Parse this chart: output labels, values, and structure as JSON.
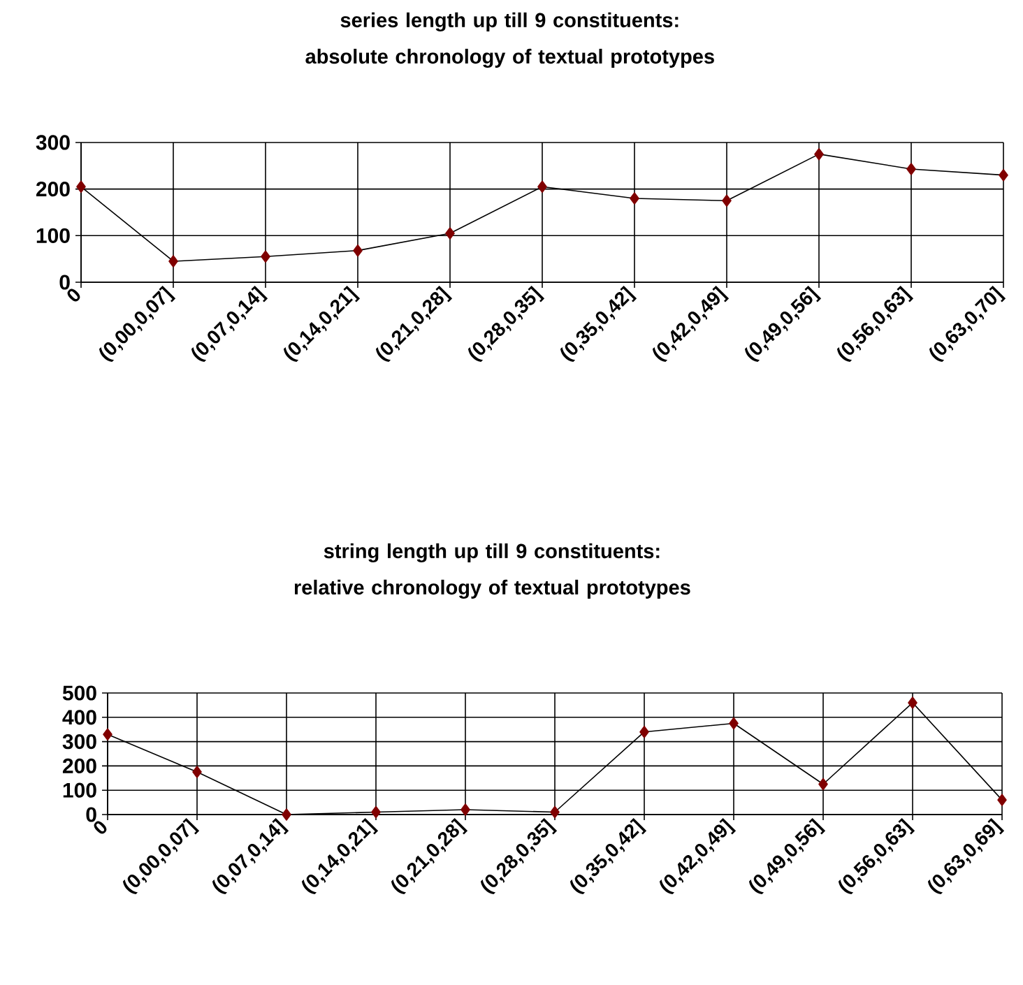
{
  "chart_data": [
    {
      "type": "line",
      "title": "series length up till 9 constituents: absolute chronology of textual prototypes",
      "categories": [
        "0",
        "(0,00,0,07]",
        "(0,07,0,14]",
        "(0,14,0,21]",
        "(0,21,0,28]",
        "(0,28,0,35]",
        "(0,35,0,42]",
        "(0,42,0,49]",
        "(0,49,0,56]",
        "(0,56,0,63]",
        "(0,63,0,70]"
      ],
      "series": [
        {
          "color": "#800000",
          "values": [
            205,
            45,
            55,
            68,
            105,
            205,
            180,
            175,
            275,
            243,
            230
          ]
        }
      ],
      "ylim": [
        0,
        300
      ],
      "yticks": [
        0,
        100,
        200,
        300
      ],
      "grid": true,
      "marker": "diamond",
      "line_style": "solid"
    },
    {
      "type": "line",
      "title": "string length up till 9 constituents: relative chronology of textual prototypes",
      "categories": [
        "0",
        "(0,00,0,07]",
        "(0,07,0,14]",
        "(0,14,0,21]",
        "(0,21,0,28]",
        "(0,28,0,35]",
        "(0,35,0,42]",
        "(0,42,0,49]",
        "(0,49,0,56]",
        "(0,56,0,63]",
        "(0,63,0,69]"
      ],
      "series": [
        {
          "color": "#800000",
          "values": [
            330,
            175,
            0,
            10,
            20,
            10,
            340,
            375,
            125,
            460,
            60
          ]
        }
      ],
      "ylim": [
        0,
        500
      ],
      "yticks": [
        0,
        100,
        200,
        300,
        400,
        500
      ],
      "grid": true,
      "marker": "diamond",
      "line_style": "solid"
    }
  ]
}
